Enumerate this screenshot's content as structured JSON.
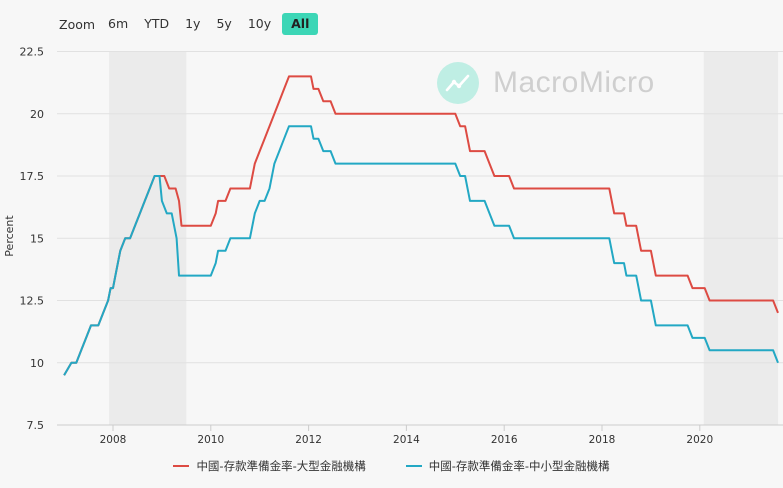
{
  "toolbar": {
    "zoom_label": "Zoom",
    "buttons": [
      "6m",
      "YTD",
      "1y",
      "5y",
      "10y",
      "All"
    ],
    "active": "All"
  },
  "watermark": {
    "text": "MacroMicro"
  },
  "colors": {
    "series1": "#dd4b43",
    "series2": "#23a8c4",
    "accent": "#3cd6b6",
    "recession": "#ebebeb"
  },
  "chart_data": {
    "type": "line",
    "ylabel": "Percent",
    "ylim": [
      7.5,
      22.5
    ],
    "yticks": [
      7.5,
      10,
      12.5,
      15,
      17.5,
      20,
      22.5
    ],
    "xticks": [
      "2008",
      "2010",
      "2012",
      "2014",
      "2016",
      "2018",
      "2020"
    ],
    "grid": true,
    "legend": "bottom",
    "shaded_periods": [
      [
        2007.92,
        2009.5
      ],
      [
        2020.08,
        2021.6
      ]
    ],
    "series": [
      {
        "name": "中國-存款準備金率-大型金融機構",
        "points": [
          [
            2007.0,
            9.5
          ],
          [
            2007.15,
            10.0
          ],
          [
            2007.25,
            10.0
          ],
          [
            2007.35,
            10.5
          ],
          [
            2007.45,
            11.0
          ],
          [
            2007.55,
            11.5
          ],
          [
            2007.7,
            11.5
          ],
          [
            2007.8,
            12.0
          ],
          [
            2007.9,
            12.5
          ],
          [
            2007.95,
            13.0
          ],
          [
            2008.0,
            13.0
          ],
          [
            2008.05,
            13.5
          ],
          [
            2008.15,
            14.5
          ],
          [
            2008.25,
            15.0
          ],
          [
            2008.35,
            15.0
          ],
          [
            2008.45,
            15.5
          ],
          [
            2008.55,
            16.0
          ],
          [
            2008.65,
            16.5
          ],
          [
            2008.75,
            17.0
          ],
          [
            2008.85,
            17.5
          ],
          [
            2009.05,
            17.5
          ],
          [
            2009.15,
            17.0
          ],
          [
            2009.28,
            17.0
          ],
          [
            2009.35,
            16.5
          ],
          [
            2009.4,
            15.5
          ],
          [
            2010.0,
            15.5
          ],
          [
            2010.1,
            16.0
          ],
          [
            2010.15,
            16.5
          ],
          [
            2010.3,
            16.5
          ],
          [
            2010.4,
            17.0
          ],
          [
            2010.8,
            17.0
          ],
          [
            2010.9,
            18.0
          ],
          [
            2011.0,
            18.5
          ],
          [
            2011.1,
            19.0
          ],
          [
            2011.2,
            19.5
          ],
          [
            2011.3,
            20.0
          ],
          [
            2011.4,
            20.5
          ],
          [
            2011.5,
            21.0
          ],
          [
            2011.6,
            21.5
          ],
          [
            2012.05,
            21.5
          ],
          [
            2012.1,
            21.0
          ],
          [
            2012.2,
            21.0
          ],
          [
            2012.3,
            20.5
          ],
          [
            2012.45,
            20.5
          ],
          [
            2012.55,
            20.0
          ],
          [
            2015.0,
            20.0
          ],
          [
            2015.1,
            19.5
          ],
          [
            2015.2,
            19.5
          ],
          [
            2015.3,
            18.5
          ],
          [
            2015.6,
            18.5
          ],
          [
            2015.7,
            18.0
          ],
          [
            2015.8,
            17.5
          ],
          [
            2016.1,
            17.5
          ],
          [
            2016.2,
            17.0
          ],
          [
            2018.15,
            17.0
          ],
          [
            2018.25,
            16.0
          ],
          [
            2018.45,
            16.0
          ],
          [
            2018.5,
            15.5
          ],
          [
            2018.7,
            15.5
          ],
          [
            2018.8,
            14.5
          ],
          [
            2019.0,
            14.5
          ],
          [
            2019.1,
            13.5
          ],
          [
            2019.75,
            13.5
          ],
          [
            2019.85,
            13.0
          ],
          [
            2020.1,
            13.0
          ],
          [
            2020.2,
            12.5
          ],
          [
            2021.5,
            12.5
          ],
          [
            2021.6,
            12.0
          ]
        ]
      },
      {
        "name": "中國-存款準備金率-中小型金融機構",
        "points": [
          [
            2007.0,
            9.5
          ],
          [
            2007.15,
            10.0
          ],
          [
            2007.25,
            10.0
          ],
          [
            2007.35,
            10.5
          ],
          [
            2007.45,
            11.0
          ],
          [
            2007.55,
            11.5
          ],
          [
            2007.7,
            11.5
          ],
          [
            2007.8,
            12.0
          ],
          [
            2007.9,
            12.5
          ],
          [
            2007.95,
            13.0
          ],
          [
            2008.0,
            13.0
          ],
          [
            2008.05,
            13.5
          ],
          [
            2008.15,
            14.5
          ],
          [
            2008.25,
            15.0
          ],
          [
            2008.35,
            15.0
          ],
          [
            2008.45,
            15.5
          ],
          [
            2008.55,
            16.0
          ],
          [
            2008.65,
            16.5
          ],
          [
            2008.75,
            17.0
          ],
          [
            2008.85,
            17.5
          ],
          [
            2008.95,
            17.5
          ],
          [
            2009.0,
            16.5
          ],
          [
            2009.1,
            16.0
          ],
          [
            2009.2,
            16.0
          ],
          [
            2009.3,
            15.0
          ],
          [
            2009.35,
            13.5
          ],
          [
            2010.0,
            13.5
          ],
          [
            2010.1,
            14.0
          ],
          [
            2010.15,
            14.5
          ],
          [
            2010.3,
            14.5
          ],
          [
            2010.4,
            15.0
          ],
          [
            2010.8,
            15.0
          ],
          [
            2010.9,
            16.0
          ],
          [
            2011.0,
            16.5
          ],
          [
            2011.1,
            16.5
          ],
          [
            2011.2,
            17.0
          ],
          [
            2011.3,
            18.0
          ],
          [
            2011.4,
            18.5
          ],
          [
            2011.5,
            19.0
          ],
          [
            2011.6,
            19.5
          ],
          [
            2012.05,
            19.5
          ],
          [
            2012.1,
            19.0
          ],
          [
            2012.2,
            19.0
          ],
          [
            2012.3,
            18.5
          ],
          [
            2012.45,
            18.5
          ],
          [
            2012.55,
            18.0
          ],
          [
            2015.0,
            18.0
          ],
          [
            2015.1,
            17.5
          ],
          [
            2015.2,
            17.5
          ],
          [
            2015.3,
            16.5
          ],
          [
            2015.6,
            16.5
          ],
          [
            2015.7,
            16.0
          ],
          [
            2015.8,
            15.5
          ],
          [
            2016.1,
            15.5
          ],
          [
            2016.2,
            15.0
          ],
          [
            2018.15,
            15.0
          ],
          [
            2018.25,
            14.0
          ],
          [
            2018.45,
            14.0
          ],
          [
            2018.5,
            13.5
          ],
          [
            2018.7,
            13.5
          ],
          [
            2018.8,
            12.5
          ],
          [
            2019.0,
            12.5
          ],
          [
            2019.1,
            11.5
          ],
          [
            2019.75,
            11.5
          ],
          [
            2019.85,
            11.0
          ],
          [
            2020.1,
            11.0
          ],
          [
            2020.2,
            10.5
          ],
          [
            2021.5,
            10.5
          ],
          [
            2021.6,
            10.0
          ]
        ]
      }
    ]
  }
}
